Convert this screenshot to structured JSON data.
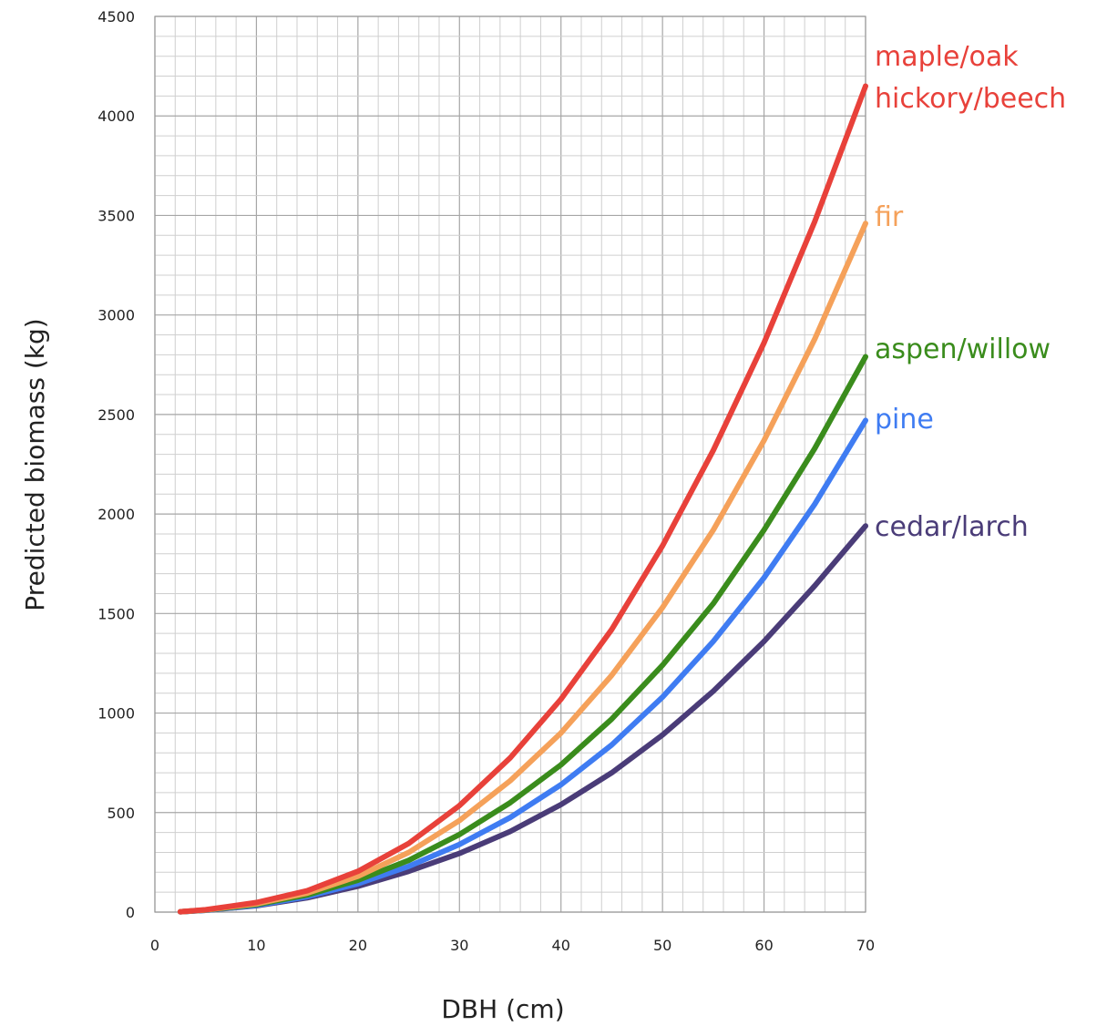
{
  "chart_data": {
    "type": "line",
    "title": "",
    "xlabel": "DBH (cm)",
    "ylabel": "Predicted biomass (kg)",
    "xlim": [
      0,
      70
    ],
    "ylim": [
      0,
      4500
    ],
    "grid": true,
    "legend": "direct labels at right end of each line",
    "x_ticks": [
      "0",
      "10",
      "20",
      "30",
      "40",
      "50",
      "60",
      "70"
    ],
    "y_ticks": [
      "0",
      "500",
      "1000",
      "1500",
      "2000",
      "2500",
      "3000",
      "3500",
      "4000",
      "4500"
    ],
    "x": [
      2.5,
      5,
      10,
      15,
      20,
      25,
      30,
      35,
      40,
      45,
      50,
      55,
      60,
      65,
      70
    ],
    "series": [
      {
        "name": "maple/oak\nhickory/beech",
        "label_lines": [
          "maple/oak",
          "hickory/beech"
        ],
        "color": "#e8413a",
        "values": [
          2,
          12,
          48,
          107,
          205,
          345,
          535,
          775,
          1070,
          1420,
          1840,
          2320,
          2860,
          3470,
          4150
        ]
      },
      {
        "name": "fir",
        "label_lines": [
          "fir"
        ],
        "color": "#f5a15a",
        "values": [
          2,
          11,
          42,
          95,
          180,
          300,
          460,
          660,
          900,
          1190,
          1530,
          1920,
          2370,
          2880,
          3460
        ]
      },
      {
        "name": "aspen/willow",
        "label_lines": [
          "aspen/willow"
        ],
        "color": "#3a8c1c",
        "values": [
          2,
          10,
          38,
          86,
          160,
          260,
          390,
          550,
          740,
          970,
          1240,
          1550,
          1920,
          2330,
          2790
        ]
      },
      {
        "name": "pine",
        "label_lines": [
          "pine"
        ],
        "color": "#3f7cf2",
        "values": [
          2,
          9,
          34,
          78,
          143,
          230,
          340,
          475,
          640,
          840,
          1080,
          1360,
          1680,
          2050,
          2470
        ]
      },
      {
        "name": "cedar/larch",
        "label_lines": [
          "cedar/larch"
        ],
        "color": "#4a3c78",
        "values": [
          2,
          9,
          32,
          72,
          130,
          205,
          295,
          405,
          540,
          700,
          890,
          1110,
          1360,
          1640,
          1940
        ]
      }
    ]
  }
}
